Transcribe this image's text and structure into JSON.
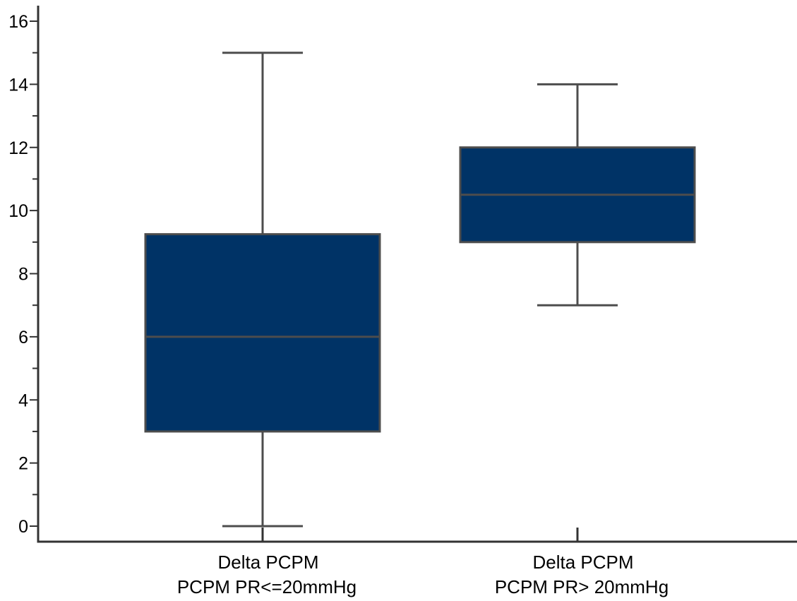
{
  "chart_data": {
    "type": "box",
    "title": "",
    "xlabel": "",
    "ylabel": "",
    "ylim": [
      -0.5,
      16.5
    ],
    "yticks": [
      0,
      2,
      4,
      6,
      8,
      10,
      12,
      14,
      16
    ],
    "minor_yticks": [
      1,
      3,
      5,
      7,
      9,
      11,
      13,
      15
    ],
    "grid": false,
    "legend": "none",
    "colors": {
      "box_fill": "#003366",
      "box_stroke": "#4d4d4d",
      "whisker": "#4d4d4d",
      "axis": "#333333"
    },
    "categories": [
      {
        "line1": "Delta PCPM",
        "line2": "PCPM PR<=20mmHg"
      },
      {
        "line1": "Delta PCPM",
        "line2": "PCPM PR> 20mmHg"
      }
    ],
    "boxes": [
      {
        "min": 0,
        "q1": 3,
        "median": 6,
        "q3": 9.25,
        "max": 15
      },
      {
        "min": 7,
        "q1": 9,
        "median": 10.5,
        "q3": 12,
        "max": 14
      }
    ]
  }
}
